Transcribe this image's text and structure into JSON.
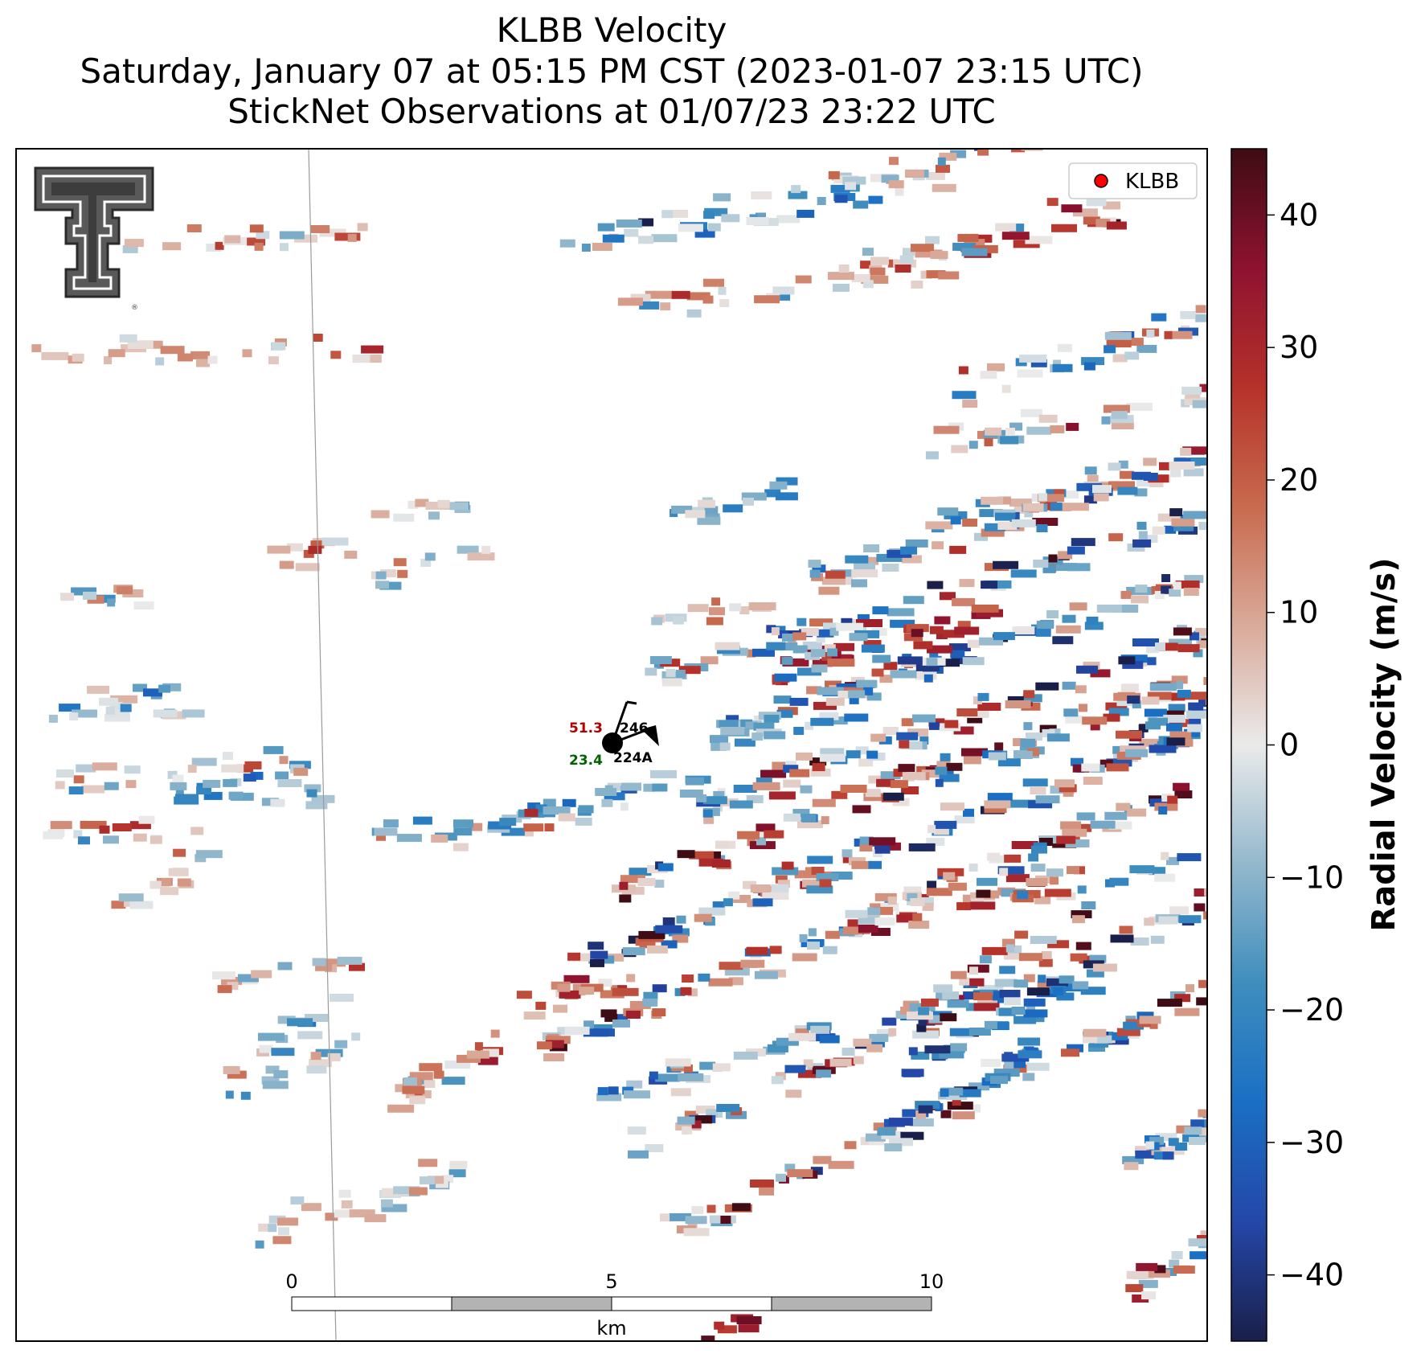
{
  "title": {
    "line1": "KLBB Velocity",
    "line2": "Saturday, January 07 at 05:15 PM CST (2023-01-07 23:15 UTC)",
    "line3": "StickNet Observations at 01/07/23 23:22 UTC"
  },
  "legend": {
    "label": "KLBB",
    "marker_color": "#ff0000",
    "placement": "top-right"
  },
  "colorbar": {
    "label": "Radial Velocity (m/s)",
    "min": -45,
    "max": 45,
    "ticks": [
      "40",
      "30",
      "20",
      "10",
      "0",
      "−10",
      "−20",
      "−30",
      "−40"
    ],
    "tick_values": [
      40,
      30,
      20,
      10,
      0,
      -10,
      -20,
      -30,
      -40
    ],
    "stops": [
      "#1a1f4a",
      "#2447a8",
      "#1a6fc4",
      "#3f8dbd",
      "#93b8cc",
      "#eaeaea",
      "#d9aa9a",
      "#c86a4e",
      "#b5322a",
      "#8e1230",
      "#3e0c14"
    ]
  },
  "scalebar": {
    "ticks": [
      "0",
      "5",
      "10"
    ],
    "unit": "km"
  },
  "station": {
    "temperature": "51.3",
    "dewpoint": "23.4",
    "wind_direction_label": "246",
    "id": "224A",
    "temperature_color": "#b40000",
    "dewpoint_color": "#006400"
  },
  "chart_data": {
    "type": "heatmap",
    "title": "KLBB Velocity",
    "variable": "Radial Velocity (m/s)",
    "value_range": [
      -45,
      45
    ],
    "grid": false,
    "bands": [
      {
        "region": "upper-right streak",
        "typical_velocity": [
          -25,
          25
        ]
      },
      {
        "region": "middle-right streak",
        "typical_velocity": [
          -30,
          35
        ]
      },
      {
        "region": "lower-right band",
        "typical_velocity": [
          -35,
          35
        ]
      },
      {
        "region": "left scattered echoes",
        "typical_velocity": [
          -15,
          20
        ]
      }
    ]
  }
}
